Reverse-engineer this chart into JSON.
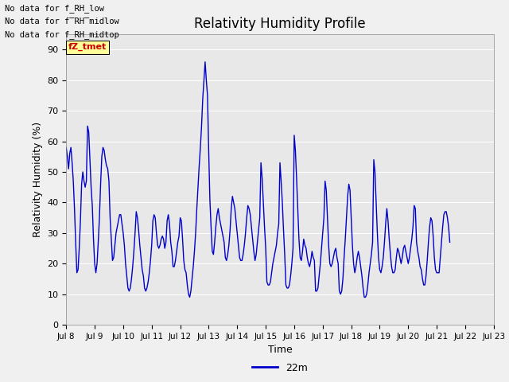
{
  "title": "Relativity Humidity Profile",
  "xlabel": "Time",
  "ylabel": "Relativity Humidity (%)",
  "legend_label": "22m",
  "line_color": "#0000cc",
  "ylim": [
    0,
    95
  ],
  "yticks": [
    0,
    10,
    20,
    30,
    40,
    50,
    60,
    70,
    80,
    90
  ],
  "no_data_texts": [
    "No data for f_RH_low",
    "No data for f̅RH̅midlow",
    "No data for f_RH_midtop"
  ],
  "legend_box_color": "#ffff99",
  "legend_text_color": "#cc0000",
  "x_tick_labels": [
    "Jul 8",
    "Jul 9",
    "Jul 10",
    "Jul 11",
    "Jul 12",
    "Jul 13",
    "Jul 14",
    "Jul 15",
    "Jul 16",
    "Jul 17",
    "Jul 18",
    "Jul 19",
    "Jul 20",
    "Jul 21",
    "Jul 22",
    "Jul 23"
  ],
  "x_tick_positions": [
    0,
    24,
    48,
    72,
    96,
    120,
    144,
    168,
    192,
    216,
    240,
    264,
    288,
    312,
    336,
    360
  ],
  "data_y": [
    58,
    55,
    51,
    56,
    58,
    53,
    47,
    38,
    27,
    17,
    18,
    25,
    34,
    46,
    50,
    47,
    45,
    47,
    65,
    63,
    54,
    45,
    39,
    28,
    20,
    17,
    20,
    27,
    35,
    46,
    55,
    58,
    57,
    54,
    52,
    51,
    47,
    35,
    28,
    21,
    22,
    26,
    30,
    32,
    34,
    36,
    36,
    33,
    30,
    26,
    20,
    16,
    12,
    11,
    12,
    15,
    19,
    24,
    30,
    37,
    35,
    31,
    26,
    22,
    18,
    16,
    12,
    11,
    12,
    14,
    17,
    21,
    26,
    34,
    36,
    35,
    30,
    26,
    25,
    26,
    28,
    29,
    28,
    25,
    27,
    34,
    36,
    33,
    27,
    24,
    19,
    19,
    21,
    24,
    27,
    29,
    35,
    34,
    28,
    21,
    18,
    17,
    13,
    10,
    9,
    11,
    15,
    19,
    24,
    30,
    38,
    45,
    52,
    58,
    65,
    74,
    80,
    86,
    80,
    75,
    57,
    41,
    32,
    24,
    23,
    27,
    32,
    36,
    38,
    35,
    33,
    31,
    29,
    27,
    22,
    21,
    23,
    26,
    31,
    38,
    42,
    40,
    38,
    34,
    30,
    26,
    22,
    21,
    21,
    23,
    26,
    30,
    35,
    39,
    38,
    36,
    32,
    28,
    24,
    21,
    23,
    27,
    31,
    35,
    53,
    48,
    40,
    32,
    25,
    14,
    13,
    13,
    14,
    17,
    20,
    22,
    24,
    26,
    30,
    33,
    53,
    47,
    40,
    31,
    23,
    13,
    12,
    12,
    13,
    16,
    20,
    25,
    62,
    57,
    48,
    38,
    28,
    22,
    21,
    24,
    28,
    26,
    25,
    22,
    20,
    19,
    21,
    24,
    22,
    21,
    11,
    11,
    12,
    16,
    20,
    25,
    30,
    35,
    47,
    44,
    35,
    26,
    20,
    19,
    20,
    22,
    24,
    25,
    22,
    20,
    11,
    10,
    11,
    15,
    22,
    28,
    35,
    42,
    46,
    44,
    35,
    26,
    20,
    17,
    19,
    22,
    24,
    22,
    19,
    16,
    12,
    9,
    9,
    10,
    13,
    17,
    20,
    23,
    27,
    54,
    50,
    40,
    30,
    22,
    18,
    17,
    19,
    22,
    27,
    33,
    38,
    34,
    28,
    23,
    19,
    17,
    17,
    18,
    22,
    25,
    24,
    22,
    20,
    22,
    25,
    26,
    24,
    22,
    20,
    22,
    25,
    28,
    32,
    39,
    38,
    27,
    24,
    22,
    19,
    18,
    15,
    13,
    13,
    16,
    21,
    27,
    32,
    35,
    34,
    29,
    22,
    18,
    17,
    17,
    17,
    22,
    27,
    32,
    36,
    37,
    37,
    35,
    32,
    27
  ]
}
